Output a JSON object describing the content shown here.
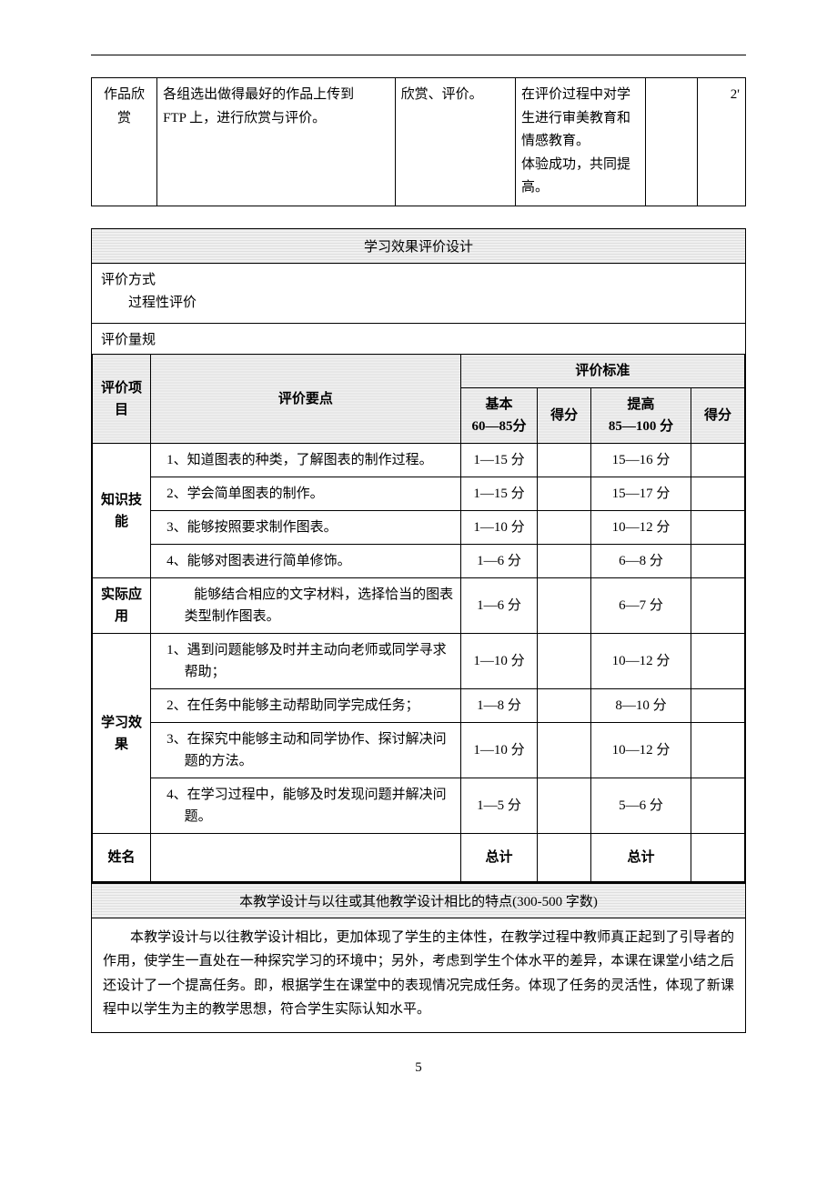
{
  "hr_color": "#000000",
  "background_color": "#ffffff",
  "hatch_bg": "repeating-linear-gradient",
  "font_family": "SimSun",
  "base_fontsize": 15,
  "table1": {
    "cells": {
      "col1": "作品欣赏",
      "col2_line1": "各组选出做得最好的作品上传到",
      "col2_line2": "FTP 上，进行欣赏与评价。",
      "col3": "欣赏、评价。",
      "col4": "在评价过程中对学生进行审美教育和情感教育。\n体验成功，共同提高。",
      "col5": "",
      "col6": "2'"
    }
  },
  "section": {
    "title": "学习效果评价设计",
    "mode_label": "评价方式",
    "mode_value": "过程性评价",
    "rubric_label": "评价量规"
  },
  "rubric": {
    "headers": {
      "project": "评价项目",
      "point": "评价要点",
      "standard": "评价标准",
      "base": "基本\n60—85分",
      "score1": "得分",
      "improve": "提高\n85—100 分",
      "score2": "得分"
    },
    "groups": [
      {
        "name": "知识技能",
        "rows": [
          {
            "point": "1、知道图表的种类，了解图表的制作过程。",
            "base": "1—15 分",
            "improve": "15—16 分"
          },
          {
            "point": "2、学会简单图表的制作。",
            "base": "1—15 分",
            "improve": "15—17 分"
          },
          {
            "point": "3、能够按照要求制作图表。",
            "base": "1—10 分",
            "improve": "10—12 分"
          },
          {
            "point": "4、能够对图表进行简单修饰。",
            "base": "1—6 分",
            "improve": "6—8 分"
          }
        ]
      },
      {
        "name": "实际应用",
        "rows": [
          {
            "point": "　　能够结合相应的文字材料，选择恰当的图表类型制作图表。",
            "base": "1—6 分",
            "improve": "6—7 分"
          }
        ]
      },
      {
        "name": "学习效果",
        "rows": [
          {
            "point": "1、遇到问题能够及时并主动向老师或同学寻求帮助；",
            "base": "1—10 分",
            "improve": "10—12 分"
          },
          {
            "point": "2、在任务中能够主动帮助同学完成任务；",
            "base": "1—8 分",
            "improve": "8—10 分"
          },
          {
            "point": "3、在探究中能够主动和同学协作、探讨解决问题的方法。",
            "base": "1—10 分",
            "improve": "10—12 分"
          },
          {
            "point": "4、在学习过程中，能够及时发现问题并解决问题。",
            "base": "1—5 分",
            "improve": "5—6 分"
          }
        ]
      }
    ],
    "footer": {
      "name": "姓名",
      "total1": "总计",
      "total2": "总计"
    }
  },
  "features": {
    "title": "本教学设计与以往或其他教学设计相比的特点(300-500 字数)",
    "body": "本教学设计与以往教学设计相比，更加体现了学生的主体性，在教学过程中教师真正起到了引导者的作用，使学生一直处在一种探究学习的环境中；另外，考虑到学生个体水平的差异，本课在课堂小结之后还设计了一个提高任务。即，根据学生在课堂中的表现情况完成任务。体现了任务的灵活性，体现了新课程中以学生为主的教学思想，符合学生实际认知水平。"
  },
  "page_number": "5"
}
